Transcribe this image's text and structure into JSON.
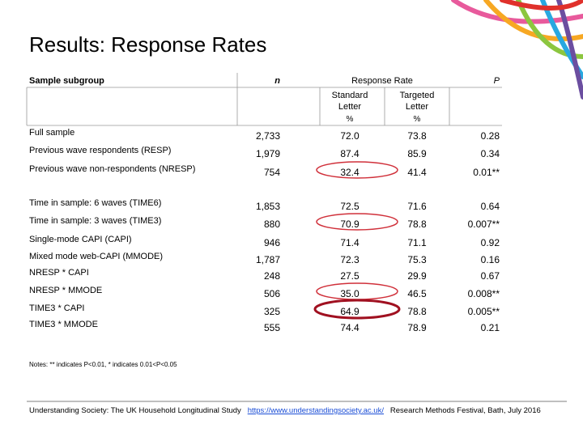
{
  "title": "Results: Response Rates",
  "table": {
    "headers": {
      "subgroup": "Sample subgroup",
      "n": "n",
      "response_rate": "Response Rate",
      "standard": "Standard Letter",
      "targeted": "Targeted Letter",
      "pct_standard": "%",
      "pct_targeted": "%",
      "p": "P"
    },
    "rows": [
      [
        "Full sample",
        "2,733",
        "72.0",
        "73.8",
        "0.28"
      ],
      [
        "Previous wave respondents (RESP)",
        "1,979",
        "87.4",
        "85.9",
        "0.34"
      ],
      [
        "Previous wave non-respondents (NRESP)",
        "754",
        "32.4",
        "41.4",
        "0.01**"
      ],
      [
        "Time in sample: 6 waves (TIME6)",
        "1,853",
        "72.5",
        "71.6",
        "0.64"
      ],
      [
        "Time in sample: 3 waves (TIME3)",
        "880",
        "70.9",
        "78.8",
        "0.007**"
      ],
      [
        "Single-mode CAPI (CAPI)",
        "946",
        "71.4",
        "71.1",
        "0.92"
      ],
      [
        "Mixed mode web-CAPI (MMODE)",
        "1,787",
        "72.3",
        "75.3",
        "0.16"
      ],
      [
        "NRESP * CAPI",
        "248",
        "27.5",
        "29.9",
        "0.67"
      ],
      [
        "NRESP * MMODE",
        "506",
        "35.0",
        "46.5",
        "0.008**"
      ],
      [
        "TIME3 * CAPI",
        "325",
        "64.9",
        "78.8",
        "0.005**"
      ],
      [
        "TIME3 * MMODE",
        "555",
        "74.4",
        "78.9",
        "0.21"
      ]
    ]
  },
  "notes": "Notes: ** indicates P<0.01, * indicates 0.01<P<0.05",
  "footer": {
    "left": "Understanding Society: The UK Household Longitudinal Study",
    "link": "https://www.understandingsociety.ac.uk/",
    "right": "Research Methods Festival, Bath, July 2016"
  }
}
